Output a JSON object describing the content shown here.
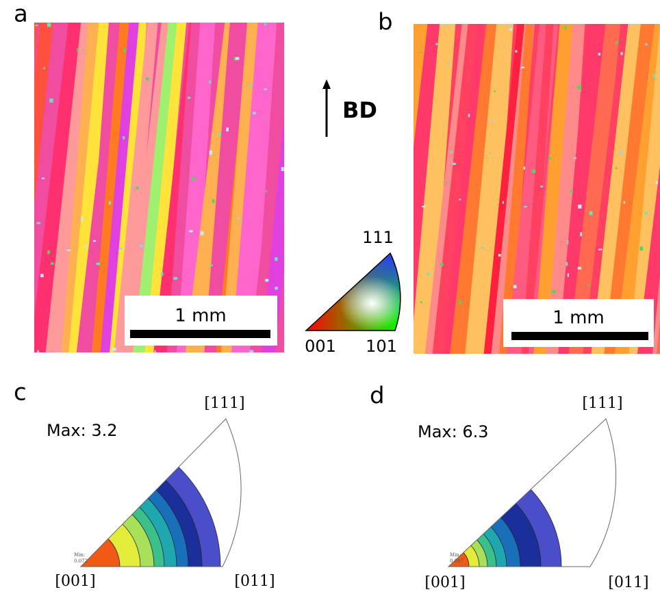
{
  "panels": {
    "a": {
      "label": "a",
      "scale_bar": "1 mm"
    },
    "b": {
      "label": "b",
      "scale_bar": "1 mm"
    },
    "c": {
      "label": "c",
      "max": "Max: 3.2",
      "min_label": "Min:",
      "min_value": "0.072",
      "corners": {
        "origin": "[001]",
        "right": "[011]",
        "top": "[111]"
      }
    },
    "d": {
      "label": "d",
      "max": "Max: 6.3",
      "min_label": "Min:",
      "min_value": "0.097",
      "corners": {
        "origin": "[001]",
        "right": "[011]",
        "top": "[111]"
      }
    }
  },
  "build_direction": "BD",
  "color_key": {
    "top": "111",
    "left": "001",
    "right": "101"
  }
}
